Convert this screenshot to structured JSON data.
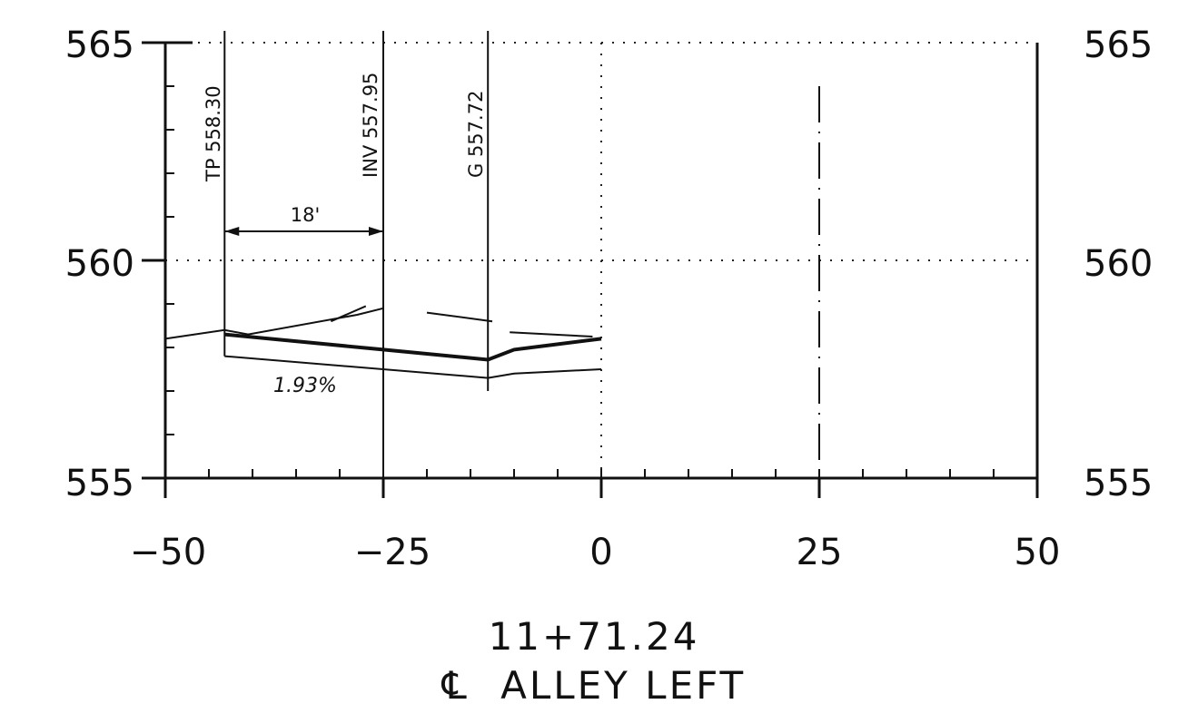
{
  "chart_data": {
    "type": "line",
    "title": "11+71.24",
    "subtitle": "ALLEY LEFT",
    "subtitle_symbol": "℄",
    "xlabel": "",
    "ylabel": "",
    "xlim": [
      -50,
      50
    ],
    "ylim": [
      555,
      565
    ],
    "x_ticks": [
      -50,
      -25,
      0,
      25,
      50
    ],
    "x_tick_labels": [
      "−50",
      "−25",
      "0",
      "25",
      "50"
    ],
    "y_ticks": [
      555,
      560,
      565
    ],
    "y_tick_labels": [
      "555",
      "560",
      "565"
    ],
    "grid": "dotted",
    "callouts": [
      {
        "text": "TP 558.30",
        "x": -43.2,
        "elev": 558.3
      },
      {
        "text": "INV 557.95",
        "x": -25,
        "elev": 557.95
      },
      {
        "text": "G 557.72",
        "x": -13,
        "elev": 557.72
      }
    ],
    "dimension": {
      "text": "18'",
      "from": -43.2,
      "to": -25
    },
    "slope_label": "1.93%",
    "series": [
      {
        "x": [
          -43.2,
          -25,
          -13,
          -10,
          0
        ],
        "y": [
          558.3,
          557.95,
          557.72,
          557.95,
          558.2
        ]
      },
      {
        "x": [
          -43.2,
          -13,
          -10,
          -5,
          0
        ],
        "y": [
          557.8,
          557.3,
          557.4,
          557.45,
          557.5
        ]
      },
      {
        "x": [
          -50,
          -43.2,
          -40.5,
          -28,
          -25
        ],
        "y": [
          558.2,
          558.4,
          558.3,
          558.75,
          558.9
        ]
      }
    ]
  }
}
